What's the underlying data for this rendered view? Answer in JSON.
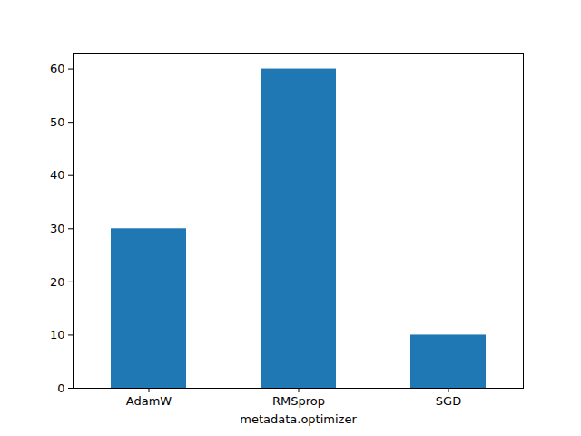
{
  "chart_data": {
    "type": "bar",
    "xlabel": "metadata.optimizer",
    "categories": [
      "AdamW",
      "RMSprop",
      "SGD"
    ],
    "values": [
      30,
      60,
      10
    ],
    "color": "#1f77b4",
    "ylim": [
      0,
      63
    ],
    "yticks": [
      0,
      10,
      20,
      30,
      40,
      50,
      60
    ],
    "grid": false
  }
}
